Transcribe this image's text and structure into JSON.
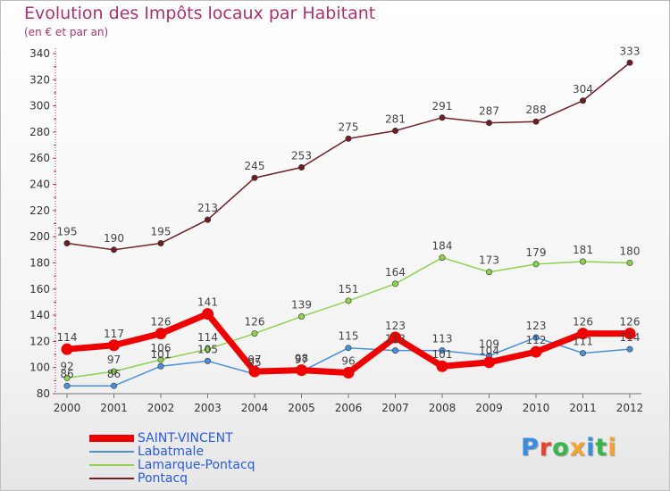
{
  "title": "Evolution des Impôts locaux par Habitant",
  "subtitle": "(en € et par an)",
  "brand": {
    "letters": [
      "P",
      "r",
      "o",
      "x",
      "i",
      "t",
      "i"
    ],
    "colors": [
      "#3b8be0",
      "#e8452f",
      "#39b54a",
      "#f2a42c",
      "#3b8be0",
      "#39b54a",
      "#f2a42c"
    ]
  },
  "chart_data": {
    "type": "line",
    "x": [
      "2000",
      "2001",
      "2002",
      "2003",
      "2004",
      "2005",
      "2006",
      "2007",
      "2008",
      "2009",
      "2010",
      "2011",
      "2012"
    ],
    "ylim": [
      80,
      340
    ],
    "yticks": [
      "80",
      "100",
      "120",
      "140",
      "160",
      "180",
      "200",
      "220",
      "240",
      "260",
      "280",
      "300",
      "320",
      "340"
    ],
    "grid": false,
    "legend": "bottom-left",
    "series": [
      {
        "name": "Pontacq",
        "color": "#6e1f23",
        "values": [
          195,
          190,
          195,
          213,
          245,
          253,
          275,
          281,
          291,
          287,
          288,
          304,
          333
        ],
        "labels": [
          "195",
          "190",
          "195",
          "213",
          "245",
          "253",
          "275",
          "281",
          "291",
          "287",
          "288",
          "304",
          "333"
        ]
      },
      {
        "name": "Lamarque-Pontacq",
        "color": "#8fd14f",
        "values": [
          92,
          97,
          106,
          114,
          126,
          139,
          151,
          164,
          184,
          173,
          179,
          181,
          180
        ],
        "labels": [
          "92",
          "97",
          "106",
          "114",
          "126",
          "139",
          "151",
          "164",
          "184",
          "173",
          "179",
          "181",
          "180"
        ]
      },
      {
        "name": "Labatmale",
        "color": "#4a90d9",
        "values": [
          86,
          86,
          101,
          105,
          95,
          97,
          115,
          113,
          113,
          109,
          123,
          111,
          114
        ],
        "labels": [
          "86",
          "86",
          "101",
          "105",
          "95",
          "97",
          "115",
          "113",
          "113",
          "109",
          "123",
          "111",
          "114"
        ]
      },
      {
        "name": "SAINT-VINCENT",
        "color": "#ee0000",
        "values": [
          114,
          117,
          126,
          141,
          97,
          98,
          96,
          123,
          101,
          104,
          112,
          126,
          126
        ],
        "labels": [
          "114",
          "117",
          "126",
          "141",
          "97",
          "98",
          "96",
          "123",
          "101",
          "104",
          "112",
          "126",
          "126"
        ]
      }
    ]
  },
  "legend_items": [
    {
      "name": "SAINT-VINCENT",
      "color": "#ee0000",
      "width": 8
    },
    {
      "name": "Labatmale",
      "color": "#4a90d9",
      "width": 2
    },
    {
      "name": "Lamarque-Pontacq",
      "color": "#8fd14f",
      "width": 2
    },
    {
      "name": "Pontacq",
      "color": "#6e1f23",
      "width": 2
    }
  ]
}
